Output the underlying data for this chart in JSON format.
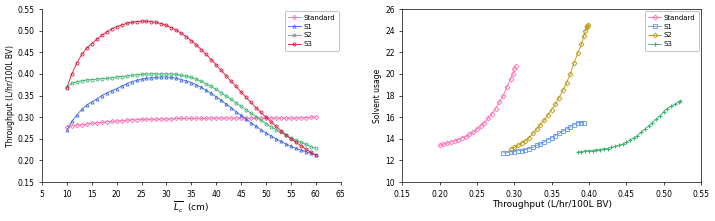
{
  "left": {
    "xlabel": "$\\overline{L_c}$  (cm)",
    "ylabel": "Throughput (L/hr/100L BV)",
    "xlim": [
      5,
      65
    ],
    "ylim": [
      0.15,
      0.55
    ],
    "xticks": [
      5,
      10,
      15,
      20,
      25,
      30,
      35,
      40,
      45,
      50,
      55,
      60,
      65
    ],
    "yticks": [
      0.15,
      0.2,
      0.25,
      0.3,
      0.35,
      0.4,
      0.45,
      0.5,
      0.55
    ],
    "series": {
      "Standard": {
        "color": "#ff69b4",
        "marker": "D",
        "x": [
          10,
          11,
          12,
          13,
          14,
          15,
          16,
          17,
          18,
          19,
          20,
          21,
          22,
          23,
          24,
          25,
          26,
          27,
          28,
          29,
          30,
          31,
          32,
          33,
          34,
          35,
          36,
          37,
          38,
          39,
          40,
          41,
          42,
          43,
          44,
          45,
          46,
          47,
          48,
          49,
          50,
          51,
          52,
          53,
          54,
          55,
          56,
          57,
          58,
          59,
          60
        ],
        "y": [
          0.278,
          0.28,
          0.282,
          0.283,
          0.284,
          0.286,
          0.287,
          0.288,
          0.289,
          0.29,
          0.291,
          0.292,
          0.293,
          0.294,
          0.294,
          0.295,
          0.295,
          0.295,
          0.296,
          0.296,
          0.296,
          0.296,
          0.297,
          0.297,
          0.297,
          0.297,
          0.297,
          0.297,
          0.297,
          0.298,
          0.298,
          0.298,
          0.298,
          0.298,
          0.298,
          0.298,
          0.298,
          0.298,
          0.298,
          0.298,
          0.298,
          0.298,
          0.298,
          0.298,
          0.298,
          0.298,
          0.298,
          0.299,
          0.299,
          0.3,
          0.301
        ]
      },
      "S1": {
        "color": "#4169e1",
        "marker": "^",
        "x": [
          10,
          11,
          12,
          13,
          14,
          15,
          16,
          17,
          18,
          19,
          20,
          21,
          22,
          23,
          24,
          25,
          26,
          27,
          28,
          29,
          30,
          31,
          32,
          33,
          34,
          35,
          36,
          37,
          38,
          39,
          40,
          41,
          42,
          43,
          44,
          45,
          46,
          47,
          48,
          49,
          50,
          51,
          52,
          53,
          54,
          55,
          56,
          57,
          58,
          59,
          60
        ],
        "y": [
          0.27,
          0.29,
          0.305,
          0.318,
          0.328,
          0.335,
          0.342,
          0.35,
          0.356,
          0.361,
          0.366,
          0.372,
          0.377,
          0.382,
          0.385,
          0.388,
          0.39,
          0.391,
          0.392,
          0.393,
          0.393,
          0.392,
          0.39,
          0.387,
          0.384,
          0.38,
          0.375,
          0.369,
          0.362,
          0.355,
          0.347,
          0.339,
          0.33,
          0.322,
          0.313,
          0.304,
          0.296,
          0.287,
          0.279,
          0.271,
          0.264,
          0.257,
          0.25,
          0.244,
          0.238,
          0.233,
          0.228,
          0.224,
          0.22,
          0.217,
          0.213
        ]
      },
      "S2": {
        "color": "#3cb371",
        "marker": "o",
        "x": [
          10,
          11,
          12,
          13,
          14,
          15,
          16,
          17,
          18,
          19,
          20,
          21,
          22,
          23,
          24,
          25,
          26,
          27,
          28,
          29,
          30,
          31,
          32,
          33,
          34,
          35,
          36,
          37,
          38,
          39,
          40,
          41,
          42,
          43,
          44,
          45,
          46,
          47,
          48,
          49,
          50,
          51,
          52,
          53,
          54,
          55,
          56,
          57,
          58,
          59,
          60
        ],
        "y": [
          0.37,
          0.378,
          0.382,
          0.384,
          0.386,
          0.387,
          0.388,
          0.389,
          0.39,
          0.391,
          0.393,
          0.394,
          0.395,
          0.397,
          0.398,
          0.399,
          0.4,
          0.4,
          0.4,
          0.4,
          0.4,
          0.4,
          0.399,
          0.397,
          0.395,
          0.392,
          0.388,
          0.383,
          0.377,
          0.371,
          0.364,
          0.357,
          0.349,
          0.341,
          0.333,
          0.325,
          0.317,
          0.309,
          0.301,
          0.293,
          0.285,
          0.278,
          0.271,
          0.265,
          0.258,
          0.252,
          0.247,
          0.242,
          0.237,
          0.232,
          0.228
        ]
      },
      "S3": {
        "color": "#dc143c",
        "marker": "o",
        "x": [
          10,
          11,
          12,
          13,
          14,
          15,
          16,
          17,
          18,
          19,
          20,
          21,
          22,
          23,
          24,
          25,
          26,
          27,
          28,
          29,
          30,
          31,
          32,
          33,
          34,
          35,
          36,
          37,
          38,
          39,
          40,
          41,
          42,
          43,
          44,
          45,
          46,
          47,
          48,
          49,
          50,
          51,
          52,
          53,
          54,
          55,
          56,
          57,
          58,
          59,
          60
        ],
        "y": [
          0.368,
          0.4,
          0.425,
          0.445,
          0.46,
          0.47,
          0.48,
          0.489,
          0.497,
          0.504,
          0.509,
          0.513,
          0.517,
          0.519,
          0.521,
          0.522,
          0.522,
          0.521,
          0.519,
          0.516,
          0.512,
          0.507,
          0.501,
          0.494,
          0.486,
          0.477,
          0.467,
          0.456,
          0.445,
          0.433,
          0.421,
          0.408,
          0.396,
          0.383,
          0.371,
          0.358,
          0.346,
          0.334,
          0.322,
          0.311,
          0.3,
          0.289,
          0.279,
          0.269,
          0.259,
          0.25,
          0.242,
          0.234,
          0.226,
          0.219,
          0.212
        ]
      }
    },
    "legend_order": [
      "Standard",
      "S1",
      "S2",
      "S3"
    ]
  },
  "right": {
    "xlabel": "Throughput (L/hr/100L BV)",
    "ylabel": "Solvent usage",
    "xlim": [
      0.15,
      0.55
    ],
    "ylim": [
      10,
      26
    ],
    "xticks": [
      0.15,
      0.2,
      0.25,
      0.3,
      0.35,
      0.4,
      0.45,
      0.5,
      0.55
    ],
    "yticks": [
      10,
      12,
      14,
      16,
      18,
      20,
      22,
      24,
      26
    ],
    "series": {
      "Standard": {
        "color": "#ff69b4",
        "marker": "D",
        "x": [
          0.2,
          0.205,
          0.21,
          0.215,
          0.22,
          0.225,
          0.23,
          0.235,
          0.24,
          0.245,
          0.25,
          0.255,
          0.26,
          0.265,
          0.27,
          0.275,
          0.28,
          0.285,
          0.29,
          0.295,
          0.298,
          0.3,
          0.302
        ],
        "y": [
          13.4,
          13.5,
          13.6,
          13.7,
          13.8,
          13.9,
          14.1,
          14.2,
          14.4,
          14.6,
          14.9,
          15.2,
          15.5,
          15.9,
          16.3,
          16.8,
          17.4,
          18.0,
          18.8,
          19.5,
          20.0,
          20.5,
          20.7
        ]
      },
      "S1": {
        "color": "#6495ed",
        "marker": "s",
        "x": [
          0.285,
          0.29,
          0.295,
          0.3,
          0.305,
          0.31,
          0.315,
          0.32,
          0.325,
          0.33,
          0.335,
          0.34,
          0.345,
          0.35,
          0.355,
          0.36,
          0.365,
          0.37,
          0.375,
          0.38,
          0.385,
          0.39,
          0.393
        ],
        "y": [
          12.7,
          12.7,
          12.8,
          12.8,
          12.9,
          12.9,
          13.0,
          13.1,
          13.2,
          13.4,
          13.5,
          13.7,
          13.9,
          14.1,
          14.3,
          14.5,
          14.7,
          14.9,
          15.1,
          15.3,
          15.5,
          15.5,
          15.5
        ]
      },
      "S2": {
        "color": "#ccaa00",
        "marker": "D",
        "x": [
          0.295,
          0.3,
          0.305,
          0.31,
          0.315,
          0.32,
          0.325,
          0.33,
          0.335,
          0.34,
          0.345,
          0.35,
          0.355,
          0.36,
          0.365,
          0.37,
          0.375,
          0.38,
          0.385,
          0.39,
          0.393,
          0.395,
          0.397,
          0.398,
          0.399
        ],
        "y": [
          13.1,
          13.2,
          13.4,
          13.6,
          13.8,
          14.1,
          14.5,
          14.9,
          15.3,
          15.7,
          16.2,
          16.7,
          17.2,
          17.8,
          18.5,
          19.2,
          20.0,
          21.0,
          21.9,
          22.8,
          23.5,
          24.0,
          24.3,
          24.4,
          24.5
        ]
      },
      "S3": {
        "color": "#3cb371",
        "marker": "+",
        "x": [
          0.385,
          0.39,
          0.395,
          0.4,
          0.405,
          0.41,
          0.415,
          0.42,
          0.425,
          0.43,
          0.435,
          0.44,
          0.445,
          0.45,
          0.455,
          0.46,
          0.465,
          0.47,
          0.475,
          0.48,
          0.485,
          0.49,
          0.495,
          0.5,
          0.505,
          0.51,
          0.515,
          0.52,
          0.522
        ],
        "y": [
          12.8,
          12.8,
          12.9,
          12.9,
          12.9,
          13.0,
          13.0,
          13.1,
          13.1,
          13.2,
          13.3,
          13.4,
          13.5,
          13.7,
          13.9,
          14.1,
          14.3,
          14.6,
          14.9,
          15.2,
          15.5,
          15.8,
          16.1,
          16.5,
          16.8,
          17.0,
          17.2,
          17.4,
          17.5
        ]
      }
    },
    "legend_order": [
      "Standard",
      "S1",
      "S2",
      "S3"
    ]
  }
}
